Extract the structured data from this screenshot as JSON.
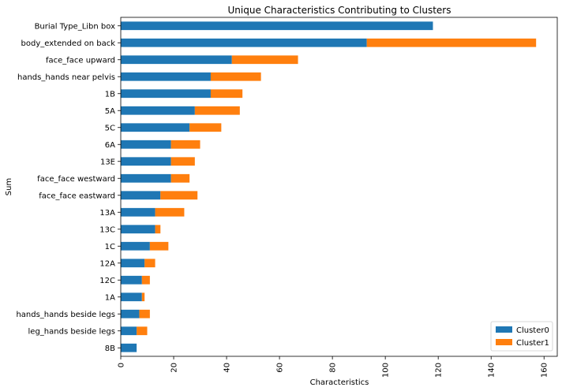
{
  "chart_data": {
    "type": "bar",
    "orientation": "horizontal",
    "stacked": true,
    "title": "Unique Characteristics Contributing to Clusters",
    "xlabel": "Characteristics",
    "ylabel": "Sum",
    "xlim": [
      0,
      165
    ],
    "xticks": [
      0,
      20,
      40,
      60,
      80,
      100,
      120,
      140,
      160
    ],
    "grid": false,
    "legend_position": "bottom-right",
    "categories": [
      "Burial Type_Libn box",
      "body_extended on back",
      "face_face upward",
      "hands_hands near pelvis",
      "1B",
      "5A",
      "5C",
      "6A",
      "13E",
      "face_face westward",
      "face_face eastward",
      "13A",
      "13C",
      "1C",
      "12A",
      "12C",
      "1A",
      "hands_hands beside legs",
      "leg_hands beside legs",
      "8B"
    ],
    "series": [
      {
        "name": "Cluster0",
        "color": "#1f77b4",
        "values": [
          118,
          93,
          42,
          34,
          34,
          28,
          26,
          19,
          19,
          19,
          15,
          13,
          13,
          11,
          9,
          8,
          8,
          7,
          6,
          6
        ]
      },
      {
        "name": "Cluster1",
        "color": "#ff7f0e",
        "values": [
          0,
          64,
          25,
          19,
          12,
          17,
          12,
          11,
          9,
          7,
          14,
          11,
          2,
          7,
          4,
          3,
          1,
          4,
          4,
          0
        ]
      }
    ]
  }
}
